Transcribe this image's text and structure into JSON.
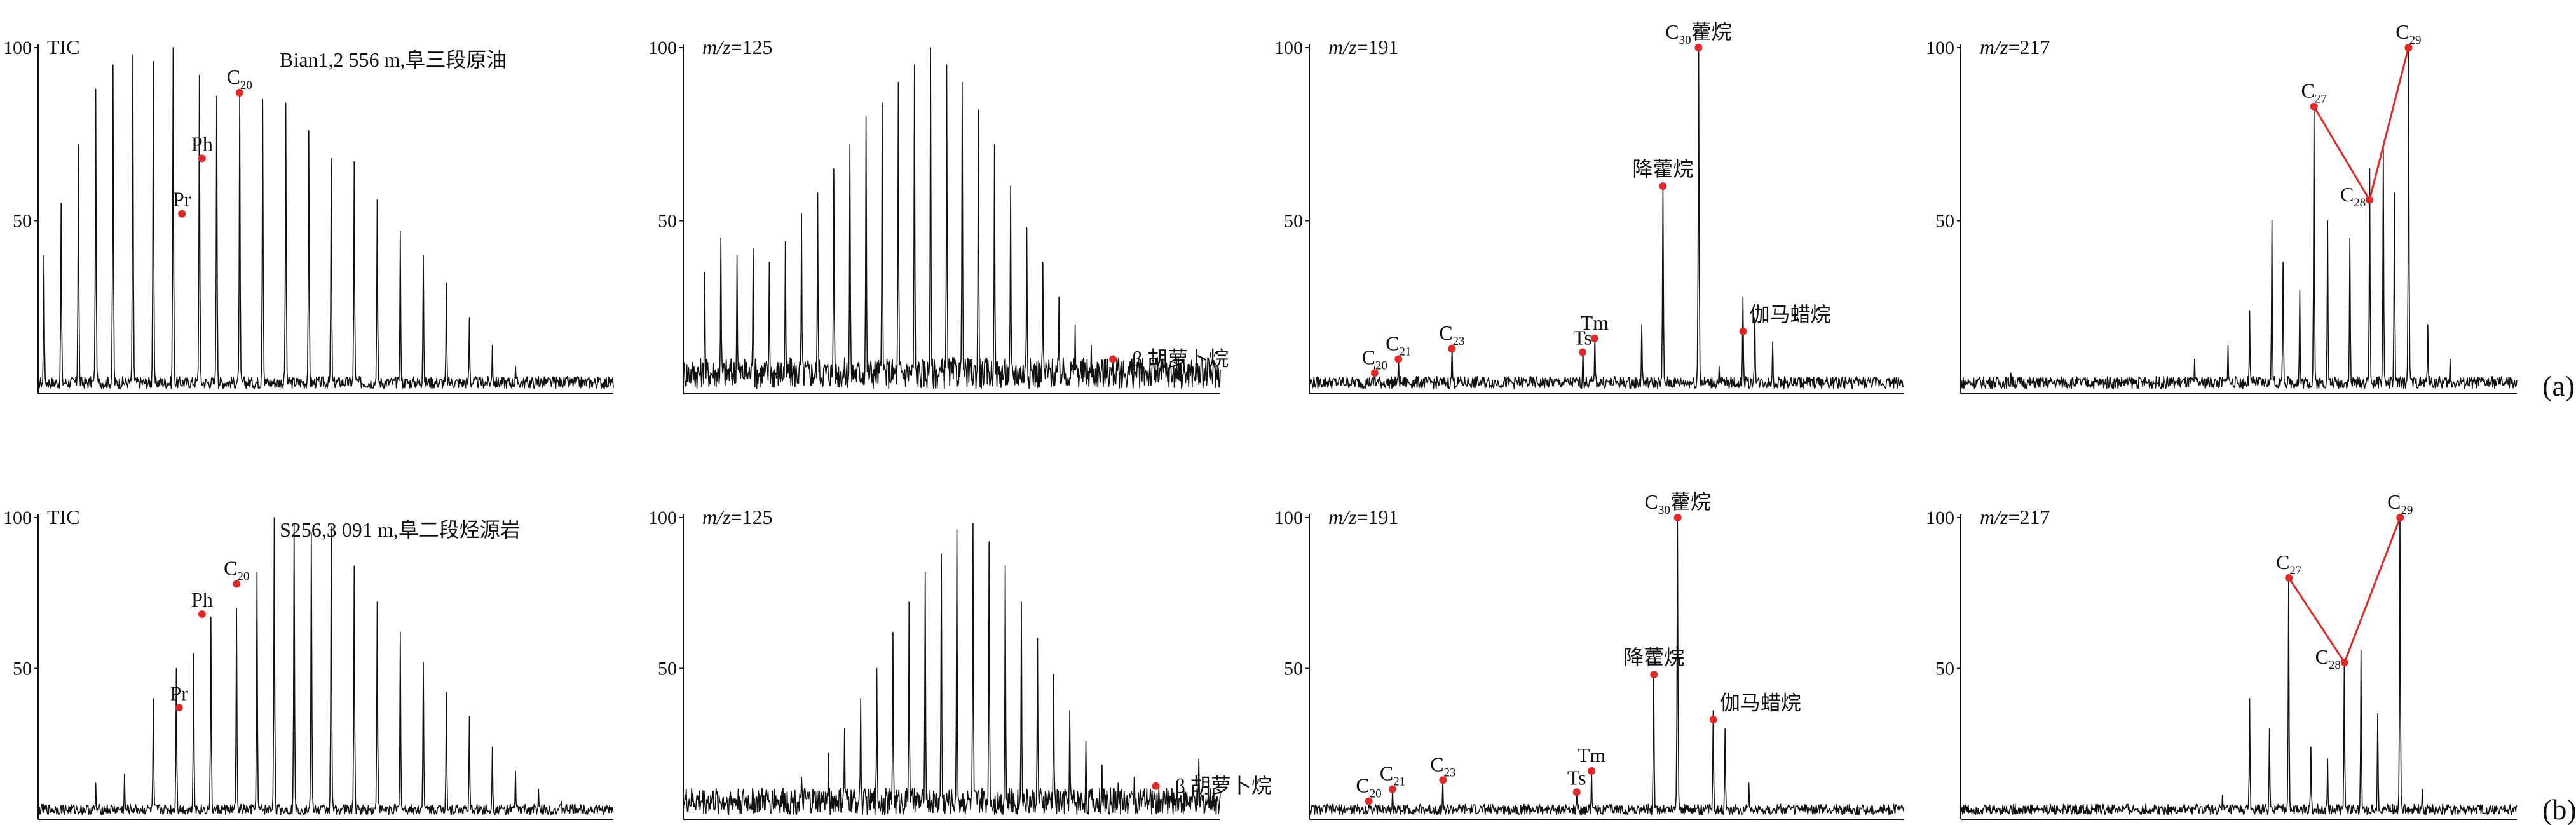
{
  "chart_data": [
    {
      "type": "line",
      "row": "a",
      "ion": "TIC",
      "yticks": [
        "100",
        "50"
      ],
      "ylim": [
        0,
        100
      ],
      "annotation": "Bian1,2 556 m,阜三段原油",
      "peaks": [
        {
          "x": 0.01,
          "y": 40
        },
        {
          "x": 0.04,
          "y": 55
        },
        {
          "x": 0.07,
          "y": 72
        },
        {
          "x": 0.1,
          "y": 88
        },
        {
          "x": 0.13,
          "y": 95
        },
        {
          "x": 0.165,
          "y": 98
        },
        {
          "x": 0.2,
          "y": 96
        },
        {
          "x": 0.235,
          "y": 100
        },
        {
          "x": 0.28,
          "y": 92
        },
        {
          "x": 0.31,
          "y": 86
        },
        {
          "x": 0.35,
          "y": 88
        },
        {
          "x": 0.39,
          "y": 85
        },
        {
          "x": 0.43,
          "y": 84
        },
        {
          "x": 0.47,
          "y": 76
        },
        {
          "x": 0.51,
          "y": 68
        },
        {
          "x": 0.55,
          "y": 67
        },
        {
          "x": 0.59,
          "y": 56
        },
        {
          "x": 0.63,
          "y": 47
        },
        {
          "x": 0.67,
          "y": 40
        },
        {
          "x": 0.71,
          "y": 32
        },
        {
          "x": 0.75,
          "y": 22
        },
        {
          "x": 0.79,
          "y": 14
        },
        {
          "x": 0.83,
          "y": 8
        },
        {
          "x": 0.87,
          "y": 5
        },
        {
          "x": 0.91,
          "y": 3
        }
      ],
      "markers": [
        {
          "x": 0.25,
          "y": 52,
          "text": "Pr"
        },
        {
          "x": 0.285,
          "y": 68,
          "text": "Ph"
        },
        {
          "x": 0.35,
          "y": 87,
          "text": "C",
          "sub": "20"
        }
      ]
    },
    {
      "type": "line",
      "row": "a",
      "ion": "m/z=125",
      "ion_italic": "m/z",
      "ion_rest": "=125",
      "yticks": [
        "100",
        "50"
      ],
      "ylim": [
        0,
        100
      ],
      "peaks": [
        {
          "x": 0.04,
          "y": 35
        },
        {
          "x": 0.07,
          "y": 45
        },
        {
          "x": 0.1,
          "y": 40
        },
        {
          "x": 0.13,
          "y": 42
        },
        {
          "x": 0.16,
          "y": 38
        },
        {
          "x": 0.19,
          "y": 44
        },
        {
          "x": 0.22,
          "y": 52
        },
        {
          "x": 0.25,
          "y": 58
        },
        {
          "x": 0.28,
          "y": 65
        },
        {
          "x": 0.31,
          "y": 72
        },
        {
          "x": 0.34,
          "y": 80
        },
        {
          "x": 0.37,
          "y": 84
        },
        {
          "x": 0.4,
          "y": 90
        },
        {
          "x": 0.43,
          "y": 95
        },
        {
          "x": 0.46,
          "y": 100
        },
        {
          "x": 0.49,
          "y": 95
        },
        {
          "x": 0.52,
          "y": 90
        },
        {
          "x": 0.55,
          "y": 82
        },
        {
          "x": 0.58,
          "y": 72
        },
        {
          "x": 0.61,
          "y": 60
        },
        {
          "x": 0.64,
          "y": 48
        },
        {
          "x": 0.67,
          "y": 38
        },
        {
          "x": 0.7,
          "y": 28
        },
        {
          "x": 0.73,
          "y": 20
        },
        {
          "x": 0.76,
          "y": 14
        },
        {
          "x": 0.79,
          "y": 10
        },
        {
          "x": 0.82,
          "y": 7
        },
        {
          "x": 0.86,
          "y": 5
        },
        {
          "x": 0.9,
          "y": 4
        }
      ],
      "markers": [
        {
          "x": 0.8,
          "y": 10,
          "text": "β 胡萝卜烷"
        }
      ]
    },
    {
      "type": "line",
      "row": "a",
      "ion": "m/z=191",
      "ion_italic": "m/z",
      "ion_rest": "=191",
      "yticks": [
        "100",
        "50"
      ],
      "ylim": [
        0,
        100
      ],
      "peaks": [
        {
          "x": 0.11,
          "y": 8
        },
        {
          "x": 0.15,
          "y": 11
        },
        {
          "x": 0.24,
          "y": 14
        },
        {
          "x": 0.46,
          "y": 13
        },
        {
          "x": 0.48,
          "y": 17
        },
        {
          "x": 0.56,
          "y": 20
        },
        {
          "x": 0.595,
          "y": 60
        },
        {
          "x": 0.655,
          "y": 100
        },
        {
          "x": 0.69,
          "y": 8
        },
        {
          "x": 0.73,
          "y": 28
        },
        {
          "x": 0.75,
          "y": 22
        },
        {
          "x": 0.78,
          "y": 15
        }
      ],
      "markers": [
        {
          "x": 0.11,
          "y": 6,
          "text": "C",
          "sub": "20"
        },
        {
          "x": 0.15,
          "y": 10,
          "text": "C",
          "sub": "21"
        },
        {
          "x": 0.24,
          "y": 13,
          "text": "C",
          "sub": "23"
        },
        {
          "x": 0.46,
          "y": 12,
          "text": "Ts"
        },
        {
          "x": 0.48,
          "y": 16,
          "text": "Tm"
        },
        {
          "x": 0.595,
          "y": 60,
          "text": "降藿烷"
        },
        {
          "x": 0.655,
          "y": 100,
          "text": "C",
          "sub": "30",
          "tail": "藿烷"
        },
        {
          "x": 0.73,
          "y": 18,
          "text": "伽马蜡烷"
        }
      ]
    },
    {
      "type": "line",
      "row": "a",
      "ion": "m/z=217",
      "ion_italic": "m/z",
      "ion_rest": "=217",
      "yticks": [
        "100",
        "50"
      ],
      "ylim": [
        0,
        100
      ],
      "peaks": [
        {
          "x": 0.09,
          "y": 6
        },
        {
          "x": 0.26,
          "y": 4
        },
        {
          "x": 0.42,
          "y": 10
        },
        {
          "x": 0.48,
          "y": 14
        },
        {
          "x": 0.52,
          "y": 24
        },
        {
          "x": 0.56,
          "y": 50
        },
        {
          "x": 0.58,
          "y": 38
        },
        {
          "x": 0.61,
          "y": 30
        },
        {
          "x": 0.635,
          "y": 83
        },
        {
          "x": 0.66,
          "y": 50
        },
        {
          "x": 0.7,
          "y": 45
        },
        {
          "x": 0.735,
          "y": 65
        },
        {
          "x": 0.76,
          "y": 72
        },
        {
          "x": 0.78,
          "y": 58
        },
        {
          "x": 0.805,
          "y": 100
        },
        {
          "x": 0.84,
          "y": 20
        },
        {
          "x": 0.88,
          "y": 10
        }
      ],
      "markers": [
        {
          "x": 0.635,
          "y": 83,
          "text": "C",
          "sub": "27"
        },
        {
          "x": 0.735,
          "y": 56,
          "text": "C",
          "sub": "28"
        },
        {
          "x": 0.805,
          "y": 100,
          "text": "C",
          "sub": "29"
        }
      ],
      "panel_label": "(a)"
    },
    {
      "type": "line",
      "row": "b",
      "ion": "TIC",
      "yticks": [
        "100",
        "50"
      ],
      "ylim": [
        0,
        100
      ],
      "annotation": "S256,3 091 m,阜二段烃源岩",
      "peaks": [
        {
          "x": 0.1,
          "y": 12
        },
        {
          "x": 0.15,
          "y": 15
        },
        {
          "x": 0.2,
          "y": 40
        },
        {
          "x": 0.24,
          "y": 50
        },
        {
          "x": 0.27,
          "y": 55
        },
        {
          "x": 0.3,
          "y": 67
        },
        {
          "x": 0.345,
          "y": 70
        },
        {
          "x": 0.38,
          "y": 82
        },
        {
          "x": 0.41,
          "y": 100
        },
        {
          "x": 0.445,
          "y": 98
        },
        {
          "x": 0.475,
          "y": 95
        },
        {
          "x": 0.51,
          "y": 97
        },
        {
          "x": 0.55,
          "y": 84
        },
        {
          "x": 0.59,
          "y": 72
        },
        {
          "x": 0.63,
          "y": 62
        },
        {
          "x": 0.67,
          "y": 52
        },
        {
          "x": 0.71,
          "y": 42
        },
        {
          "x": 0.75,
          "y": 34
        },
        {
          "x": 0.79,
          "y": 24
        },
        {
          "x": 0.83,
          "y": 16
        },
        {
          "x": 0.87,
          "y": 10
        },
        {
          "x": 0.91,
          "y": 6
        },
        {
          "x": 0.95,
          "y": 3
        }
      ],
      "markers": [
        {
          "x": 0.245,
          "y": 37,
          "text": "Pr"
        },
        {
          "x": 0.285,
          "y": 68,
          "text": "Ph"
        },
        {
          "x": 0.345,
          "y": 78,
          "text": "C",
          "sub": "20"
        }
      ]
    },
    {
      "type": "line",
      "row": "b",
      "ion": "m/z=125",
      "ion_italic": "m/z",
      "ion_rest": "=125",
      "yticks": [
        "100",
        "50"
      ],
      "ylim": [
        0,
        100
      ],
      "peaks": [
        {
          "x": 0.17,
          "y": 10
        },
        {
          "x": 0.22,
          "y": 14
        },
        {
          "x": 0.27,
          "y": 22
        },
        {
          "x": 0.3,
          "y": 30
        },
        {
          "x": 0.33,
          "y": 40
        },
        {
          "x": 0.36,
          "y": 50
        },
        {
          "x": 0.39,
          "y": 62
        },
        {
          "x": 0.42,
          "y": 72
        },
        {
          "x": 0.45,
          "y": 82
        },
        {
          "x": 0.48,
          "y": 88
        },
        {
          "x": 0.51,
          "y": 96
        },
        {
          "x": 0.54,
          "y": 98
        },
        {
          "x": 0.57,
          "y": 92
        },
        {
          "x": 0.6,
          "y": 84
        },
        {
          "x": 0.63,
          "y": 72
        },
        {
          "x": 0.66,
          "y": 60
        },
        {
          "x": 0.69,
          "y": 48
        },
        {
          "x": 0.72,
          "y": 36
        },
        {
          "x": 0.75,
          "y": 26
        },
        {
          "x": 0.78,
          "y": 18
        },
        {
          "x": 0.81,
          "y": 12
        },
        {
          "x": 0.84,
          "y": 14
        },
        {
          "x": 0.87,
          "y": 10
        },
        {
          "x": 0.92,
          "y": 8
        },
        {
          "x": 0.96,
          "y": 20
        }
      ],
      "markers": [
        {
          "x": 0.88,
          "y": 11,
          "text": "β 胡萝卜烷"
        }
      ]
    },
    {
      "type": "line",
      "row": "b",
      "ion": "m/z=191",
      "ion_italic": "m/z",
      "ion_rest": "=191",
      "yticks": [
        "100",
        "50"
      ],
      "ylim": [
        0,
        100
      ],
      "peaks": [
        {
          "x": 0.1,
          "y": 7
        },
        {
          "x": 0.14,
          "y": 10
        },
        {
          "x": 0.225,
          "y": 13
        },
        {
          "x": 0.45,
          "y": 10
        },
        {
          "x": 0.475,
          "y": 16
        },
        {
          "x": 0.58,
          "y": 48
        },
        {
          "x": 0.62,
          "y": 100
        },
        {
          "x": 0.68,
          "y": 36
        },
        {
          "x": 0.7,
          "y": 30
        },
        {
          "x": 0.74,
          "y": 12
        }
      ],
      "markers": [
        {
          "x": 0.1,
          "y": 6,
          "text": "C",
          "sub": "20"
        },
        {
          "x": 0.14,
          "y": 10,
          "text": "C",
          "sub": "21"
        },
        {
          "x": 0.225,
          "y": 13,
          "text": "C",
          "sub": "23"
        },
        {
          "x": 0.45,
          "y": 9,
          "text": "Ts"
        },
        {
          "x": 0.475,
          "y": 16,
          "text": "Tm"
        },
        {
          "x": 0.58,
          "y": 48,
          "text": "降藿烷"
        },
        {
          "x": 0.62,
          "y": 100,
          "text": "C",
          "sub": "30",
          "tail": "藿烷"
        },
        {
          "x": 0.68,
          "y": 33,
          "text": "伽马蜡烷"
        }
      ]
    },
    {
      "type": "line",
      "row": "b",
      "ion": "m/z=217",
      "ion_italic": "m/z",
      "ion_rest": "=217",
      "yticks": [
        "100",
        "50"
      ],
      "ylim": [
        0,
        100
      ],
      "peaks": [
        {
          "x": 0.47,
          "y": 8
        },
        {
          "x": 0.52,
          "y": 40
        },
        {
          "x": 0.555,
          "y": 30
        },
        {
          "x": 0.59,
          "y": 80
        },
        {
          "x": 0.63,
          "y": 24
        },
        {
          "x": 0.66,
          "y": 20
        },
        {
          "x": 0.69,
          "y": 52
        },
        {
          "x": 0.72,
          "y": 56
        },
        {
          "x": 0.75,
          "y": 35
        },
        {
          "x": 0.79,
          "y": 100
        },
        {
          "x": 0.83,
          "y": 10
        }
      ],
      "markers": [
        {
          "x": 0.59,
          "y": 80,
          "text": "C",
          "sub": "27"
        },
        {
          "x": 0.69,
          "y": 52,
          "text": "C",
          "sub": "28"
        },
        {
          "x": 0.79,
          "y": 100,
          "text": "C",
          "sub": "29"
        }
      ],
      "panel_label": "(b)"
    }
  ],
  "style": {
    "line_color": "#111111",
    "marker_color": "#e02a2a",
    "connector_color": "#e02a2a"
  }
}
